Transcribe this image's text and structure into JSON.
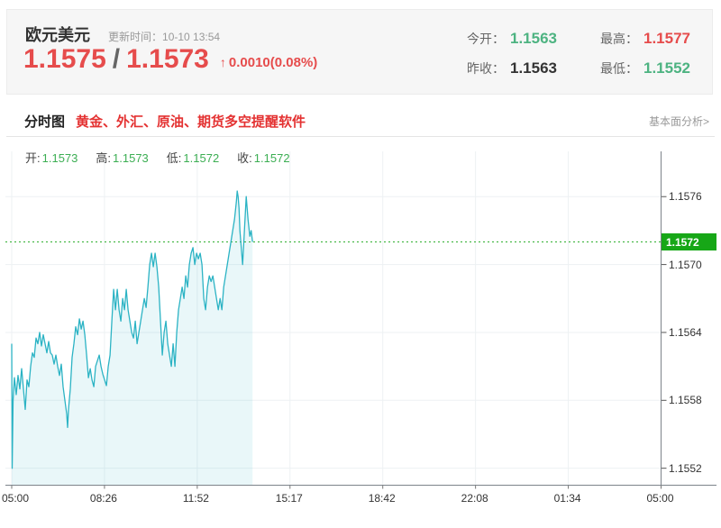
{
  "header": {
    "symbol": "欧元美元",
    "update_label": "更新时间：",
    "update_time": "10-10 13:54",
    "bid": "1.1575",
    "separator": "/",
    "ask": "1.1573",
    "change_arrow": "↑",
    "change_text": "0.0010(0.08%)",
    "stats": [
      {
        "label": "今开：",
        "value": "1.1563",
        "color": "green"
      },
      {
        "label": "最高：",
        "value": "1.1577",
        "color": "red"
      },
      {
        "label": "昨收：",
        "value": "1.1563",
        "color": "dark"
      },
      {
        "label": "最低：",
        "value": "1.1552",
        "color": "green"
      }
    ]
  },
  "section": {
    "tab": "分时图",
    "promo": "黄金、外汇、原油、期货多空提醒软件",
    "link": "基本面分析>"
  },
  "ohlc": [
    {
      "label": "开:",
      "value": "1.1573"
    },
    {
      "label": "高:",
      "value": "1.1573"
    },
    {
      "label": "低:",
      "value": "1.1572"
    },
    {
      "label": "收:",
      "value": "1.1572"
    }
  ],
  "colors": {
    "green": "#4db381",
    "red": "#e64c4c",
    "dark": "#333333",
    "line_teal": "#2bb3c4",
    "area_fill": "rgba(43,179,196,0.10)",
    "dotted_green": "#2fae2f",
    "tag_green": "#17a717",
    "grid": "#edf1f3",
    "axis": "#7d838a"
  },
  "chart_data": {
    "type": "line",
    "title": "分时图 (EUR/USD intraday minute chart)",
    "x_ticks": [
      "05:00",
      "08:26",
      "11:52",
      "15:17",
      "18:42",
      "22:08",
      "01:34",
      "05:00"
    ],
    "x_range_minutes": [
      0,
      1440
    ],
    "y_ticks": [
      1.1576,
      1.157,
      1.1564,
      1.1558,
      1.1552
    ],
    "ylim": [
      1.15505,
      1.158
    ],
    "grid": true,
    "current_price": 1.1572,
    "current_price_label": "1.1572",
    "open": 1.1573,
    "high": 1.1573,
    "low": 1.1572,
    "close": 1.1572,
    "series": [
      {
        "name": "price",
        "points": [
          [
            0,
            1.1563
          ],
          [
            1,
            1.1552
          ],
          [
            3,
            1.1558
          ],
          [
            6,
            1.156
          ],
          [
            10,
            1.15585
          ],
          [
            14,
            1.15602
          ],
          [
            18,
            1.1559
          ],
          [
            22,
            1.15608
          ],
          [
            26,
            1.1559
          ],
          [
            30,
            1.15572
          ],
          [
            34,
            1.15598
          ],
          [
            38,
            1.15592
          ],
          [
            42,
            1.1561
          ],
          [
            46,
            1.15622
          ],
          [
            50,
            1.15618
          ],
          [
            54,
            1.15635
          ],
          [
            58,
            1.1563
          ],
          [
            62,
            1.1564
          ],
          [
            66,
            1.15628
          ],
          [
            70,
            1.15638
          ],
          [
            74,
            1.1563
          ],
          [
            78,
            1.15622
          ],
          [
            82,
            1.15632
          ],
          [
            86,
            1.15622
          ],
          [
            90,
            1.1562
          ],
          [
            94,
            1.15612
          ],
          [
            98,
            1.1562
          ],
          [
            102,
            1.1561
          ],
          [
            106,
            1.15602
          ],
          [
            110,
            1.15612
          ],
          [
            114,
            1.15592
          ],
          [
            118,
            1.1558
          ],
          [
            122,
            1.15568
          ],
          [
            124,
            1.15556
          ],
          [
            126,
            1.15572
          ],
          [
            130,
            1.1559
          ],
          [
            134,
            1.15618
          ],
          [
            138,
            1.1563
          ],
          [
            142,
            1.15645
          ],
          [
            146,
            1.15638
          ],
          [
            150,
            1.15652
          ],
          [
            154,
            1.15643
          ],
          [
            158,
            1.1565
          ],
          [
            162,
            1.15638
          ],
          [
            166,
            1.1562
          ],
          [
            170,
            1.156
          ],
          [
            174,
            1.15608
          ],
          [
            178,
            1.15598
          ],
          [
            182,
            1.15592
          ],
          [
            186,
            1.1561
          ],
          [
            190,
            1.15615
          ],
          [
            194,
            1.1562
          ],
          [
            198,
            1.1561
          ],
          [
            202,
            1.15603
          ],
          [
            206,
            1.15598
          ],
          [
            210,
            1.15593
          ],
          [
            214,
            1.1561
          ],
          [
            218,
            1.1562
          ],
          [
            222,
            1.1565
          ],
          [
            226,
            1.15678
          ],
          [
            230,
            1.1566
          ],
          [
            234,
            1.15678
          ],
          [
            238,
            1.1566
          ],
          [
            242,
            1.1565
          ],
          [
            246,
            1.1567
          ],
          [
            250,
            1.1566
          ],
          [
            254,
            1.15678
          ],
          [
            258,
            1.1566
          ],
          [
            262,
            1.1565
          ],
          [
            266,
            1.1564
          ],
          [
            270,
            1.15635
          ],
          [
            274,
            1.1565
          ],
          [
            278,
            1.1563
          ],
          [
            282,
            1.1564
          ],
          [
            286,
            1.1565
          ],
          [
            290,
            1.1566
          ],
          [
            294,
            1.1567
          ],
          [
            298,
            1.15662
          ],
          [
            302,
            1.1568
          ],
          [
            306,
            1.157
          ],
          [
            310,
            1.1571
          ],
          [
            314,
            1.15698
          ],
          [
            318,
            1.1571
          ],
          [
            322,
            1.15698
          ],
          [
            326,
            1.1568
          ],
          [
            330,
            1.1565
          ],
          [
            334,
            1.1562
          ],
          [
            338,
            1.1564
          ],
          [
            342,
            1.1565
          ],
          [
            346,
            1.1563
          ],
          [
            350,
            1.1562
          ],
          [
            354,
            1.1561
          ],
          [
            358,
            1.1563
          ],
          [
            362,
            1.1561
          ],
          [
            366,
            1.1564
          ],
          [
            370,
            1.1566
          ],
          [
            374,
            1.1567
          ],
          [
            378,
            1.1568
          ],
          [
            382,
            1.1567
          ],
          [
            386,
            1.1569
          ],
          [
            390,
            1.1568
          ],
          [
            394,
            1.157
          ],
          [
            398,
            1.1571
          ],
          [
            402,
            1.15715
          ],
          [
            406,
            1.157
          ],
          [
            410,
            1.1571
          ],
          [
            414,
            1.15705
          ],
          [
            418,
            1.1571
          ],
          [
            422,
            1.157
          ],
          [
            426,
            1.1567
          ],
          [
            430,
            1.1566
          ],
          [
            434,
            1.1568
          ],
          [
            438,
            1.1569
          ],
          [
            442,
            1.15685
          ],
          [
            446,
            1.1569
          ],
          [
            450,
            1.1568
          ],
          [
            454,
            1.1567
          ],
          [
            458,
            1.1566
          ],
          [
            462,
            1.1567
          ],
          [
            466,
            1.1566
          ],
          [
            470,
            1.1568
          ],
          [
            474,
            1.1569
          ],
          [
            478,
            1.157
          ],
          [
            482,
            1.1571
          ],
          [
            486,
            1.1572
          ],
          [
            490,
            1.1573
          ],
          [
            494,
            1.1574
          ],
          [
            498,
            1.15755
          ],
          [
            500,
            1.15765
          ],
          [
            502,
            1.1576
          ],
          [
            504,
            1.1575
          ],
          [
            506,
            1.1573
          ],
          [
            510,
            1.1571
          ],
          [
            512,
            1.157
          ],
          [
            516,
            1.1573
          ],
          [
            520,
            1.1576
          ],
          [
            524,
            1.1574
          ],
          [
            528,
            1.15725
          ],
          [
            531,
            1.1573
          ],
          [
            534,
            1.1572
          ]
        ]
      }
    ]
  }
}
